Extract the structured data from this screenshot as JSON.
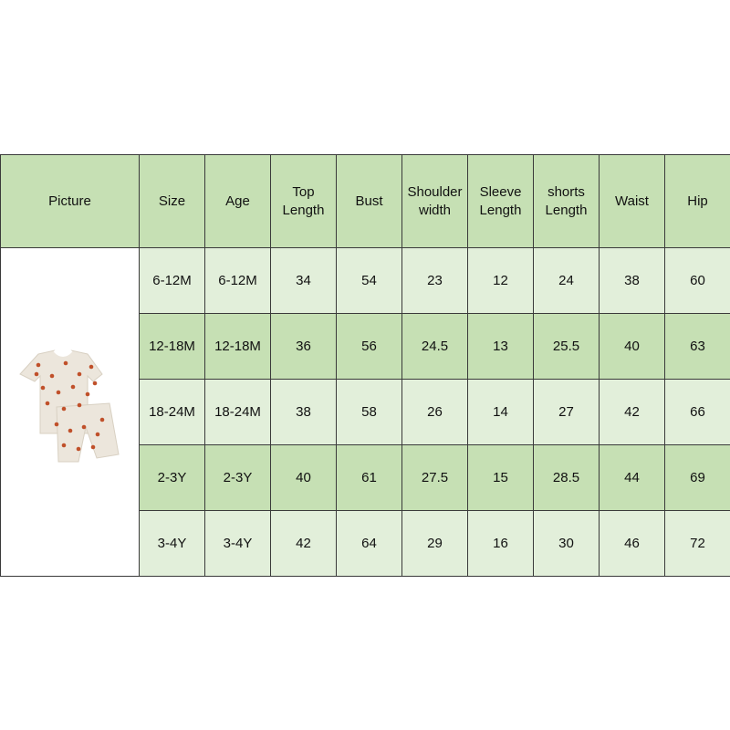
{
  "headers": [
    "Picture",
    "Size",
    "Age",
    "Top\nLength",
    "Bust",
    "Shoulder\nwidth",
    "Sleeve\nLength",
    "shorts\nLength",
    "Waist",
    "Hip"
  ],
  "rows": [
    [
      "6-12M",
      "6-12M",
      "34",
      "54",
      "23",
      "12",
      "24",
      "38",
      "60"
    ],
    [
      "12-18M",
      "12-18M",
      "36",
      "56",
      "24.5",
      "13",
      "25.5",
      "40",
      "63"
    ],
    [
      "18-24M",
      "18-24M",
      "38",
      "58",
      "26",
      "14",
      "27",
      "42",
      "66"
    ],
    [
      "2-3Y",
      "2-3Y",
      "40",
      "61",
      "27.5",
      "15",
      "28.5",
      "44",
      "69"
    ],
    [
      "3-4Y",
      "3-4Y",
      "42",
      "64",
      "29",
      "16",
      "30",
      "46",
      "72"
    ]
  ],
  "colors": {
    "header": "#c6e0b4",
    "row_light": "#e2efda",
    "row_dark": "#c6e0b4",
    "print_dot": "#c0502a"
  },
  "picture": "floral-tshirt-and-shorts-set"
}
